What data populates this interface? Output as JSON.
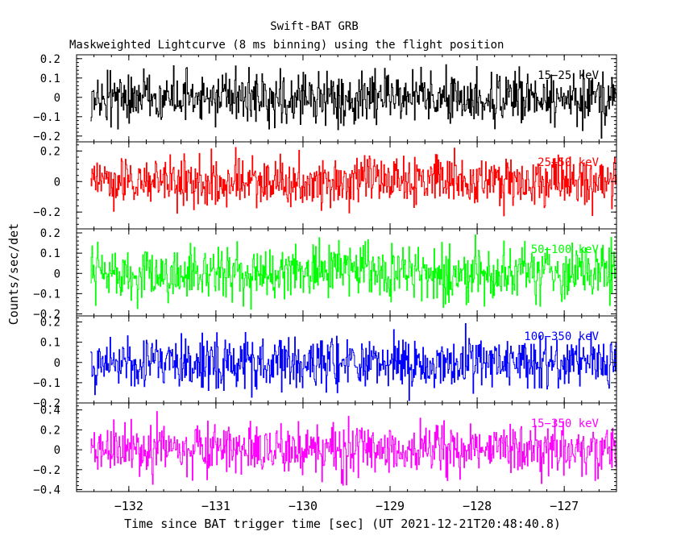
{
  "header": {
    "title": "Swift-BAT GRB",
    "subtitle": "Maskweighted Lightcurve (8 ms binning) using the flight position"
  },
  "axes": {
    "xlabel": "Time since BAT trigger time [sec] (UT 2021-12-21T20:48:40.8)",
    "ylabel": "Counts/sec/det"
  },
  "chart_data": {
    "type": "line",
    "title": "Swift-BAT GRB",
    "subtitle": "Maskweighted Lightcurve (8 ms binning) using the flight position",
    "xlabel": "Time since BAT trigger time [sec] (UT 2021-12-21T20:48:40.8)",
    "ylabel": "Counts/sec/det",
    "binning_s": 0.008,
    "xlim": [
      -132.6,
      -126.4
    ],
    "data_x_range": [
      -132.44,
      -126.36
    ],
    "x_ticks": [
      -132,
      -131,
      -130,
      -129,
      -128,
      -127
    ],
    "x_tick_labels": [
      "−132",
      "−131",
      "−130",
      "−129",
      "−128",
      "−127"
    ],
    "series": [
      {
        "name": "15−25 keV",
        "color": "#000000",
        "ylim": [
          -0.23,
          0.22
        ],
        "y_ticks": [
          -0.2,
          -0.1,
          0,
          0.1,
          0.2
        ],
        "y_tick_labels": [
          "−0.2",
          "−0.1",
          "0",
          "0.1",
          "0.2"
        ],
        "mean": 0,
        "noise_sigma": 0.065
      },
      {
        "name": "25−50 keV",
        "color": "#ff0000",
        "ylim": [
          -0.31,
          0.26
        ],
        "y_ticks": [
          -0.2,
          0,
          0.2
        ],
        "y_tick_labels": [
          "−0.2",
          "0",
          "0.2"
        ],
        "mean": 0,
        "noise_sigma": 0.085
      },
      {
        "name": "50−100 keV",
        "color": "#00ff00",
        "ylim": [
          -0.21,
          0.22
        ],
        "y_ticks": [
          -0.2,
          -0.1,
          0,
          0.1,
          0.2
        ],
        "y_tick_labels": [
          "−0.2",
          "−0.1",
          "0",
          "0.1",
          "0.2"
        ],
        "mean": 0,
        "noise_sigma": 0.065
      },
      {
        "name": "100−350 keV",
        "color": "#0000ff",
        "ylim": [
          -0.2,
          0.23
        ],
        "y_ticks": [
          -0.2,
          -0.1,
          0,
          0.1,
          0.2
        ],
        "y_tick_labels": [
          "−0.2",
          "−0.1",
          "0",
          "0.1",
          "0.2"
        ],
        "mean": 0,
        "noise_sigma": 0.065
      },
      {
        "name": "15−350 keV",
        "color": "#ff00ff",
        "ylim": [
          -0.42,
          0.47
        ],
        "y_ticks": [
          -0.4,
          -0.2,
          0,
          0.2,
          0.4
        ],
        "y_tick_labels": [
          "−0.4",
          "−0.2",
          "0",
          "0.2",
          "0.4"
        ],
        "mean": 0,
        "noise_sigma": 0.13
      }
    ]
  }
}
